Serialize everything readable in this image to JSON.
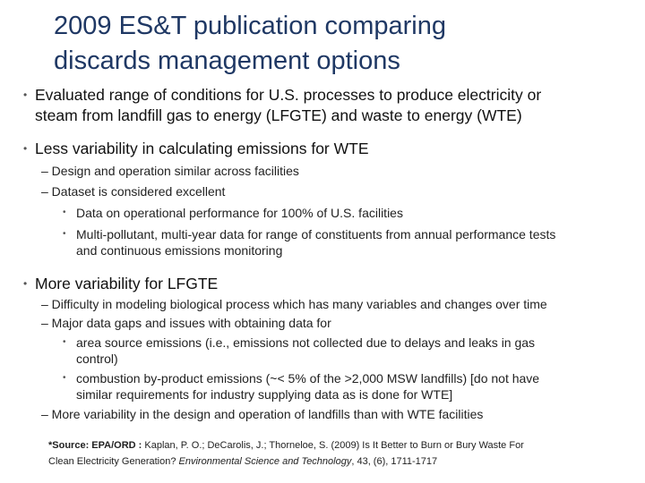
{
  "title": {
    "line1": "2009 ES&T publication comparing",
    "line2": "discards management options"
  },
  "bullets": [
    {
      "bullet": "•",
      "line1": "Evaluated range of conditions for U.S. processes to produce electricity or",
      "line2": "steam from landfill gas to energy (LFGTE) and waste to energy (WTE)"
    },
    {
      "bullet": "•",
      "text": "Less variability in calculating emissions for WTE",
      "sub": [
        {
          "text": "– Design and operation similar across facilities"
        },
        {
          "text": "– Dataset is considered excellent"
        }
      ],
      "subsub": [
        {
          "bullet": "•",
          "line1": "Data on operational performance for 100% of U.S. facilities"
        },
        {
          "bullet": "•",
          "line1": "Multi-pollutant, multi-year data for range of constituents from annual performance tests",
          "line2": "and continuous emissions monitoring"
        }
      ]
    },
    {
      "bullet": "•",
      "text": "More variability for LFGTE",
      "sub": [
        {
          "text": "– Difficulty in modeling biological process which has many variables and changes over time"
        },
        {
          "text": "– Major data gaps and issues with obtaining data for"
        },
        {
          "text": "– More variability in the design and operation of landfills than with WTE facilities"
        }
      ],
      "subsub": [
        {
          "bullet": "•",
          "line1": "area source emissions (i.e., emissions not collected due to delays and leaks in gas",
          "line2": "control)"
        },
        {
          "bullet": "•",
          "line1": "combustion by-product emissions (~< 5% of the >2,000 MSW landfills) [do not have",
          "line2": "similar requirements for industry supplying data as is done for WTE]"
        }
      ]
    }
  ],
  "source": {
    "label": "*Source: EPA/ORD :",
    "text1": " Kaplan, P. O.; DeCarolis, J.; Thorneloe, S. (2009) Is It Better to Burn or Bury Waste For",
    "text2": "Clean Electricity Generation? ",
    "journal": "Environmental Science and Technology",
    "text3": ", 43, (6), 1711-1717"
  }
}
